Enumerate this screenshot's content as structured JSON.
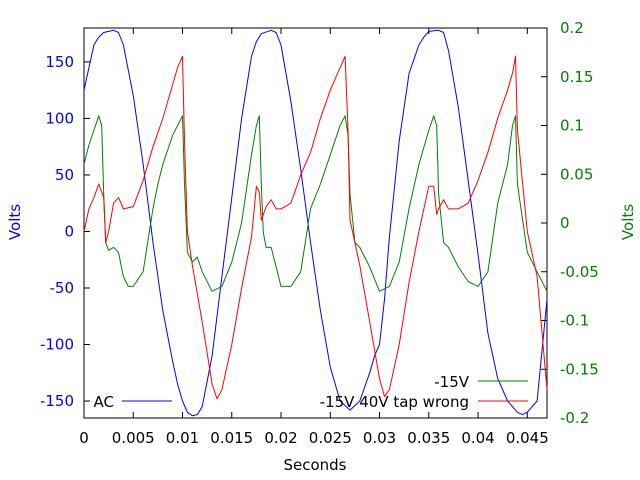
{
  "chart_data": {
    "type": "line",
    "title": "",
    "xlabel": "Seconds",
    "ylabel_left": "Volts",
    "ylabel_right": "Volts",
    "xlim": [
      0,
      0.047
    ],
    "ylim_left": [
      -165,
      180
    ],
    "ylim_right": [
      -0.2,
      0.2
    ],
    "x_ticks": [
      "0",
      "0.005",
      "0.01",
      "0.015",
      "0.02",
      "0.025",
      "0.03",
      "0.035",
      "0.04",
      "0.045"
    ],
    "y_left_ticks": [
      "150",
      "100",
      "50",
      "0",
      "-50",
      "-100",
      "-150"
    ],
    "y_right_ticks": [
      "0.2",
      "0.15",
      "0.1",
      "0.05",
      "0",
      "-0.05",
      "-0.1",
      "-0.15",
      "-0.2"
    ],
    "grid": false,
    "legend_placement": "bottom",
    "colors": {
      "left_axis": "#0000ff",
      "right_axis": "#008000"
    },
    "series": [
      {
        "name": "AC",
        "axis": "left",
        "color": "#0000ff",
        "x": [
          0,
          0.001,
          0.0015,
          0.002,
          0.003,
          0.0035,
          0.004,
          0.005,
          0.006,
          0.007,
          0.008,
          0.009,
          0.0095,
          0.01,
          0.0105,
          0.011,
          0.0115,
          0.012,
          0.013,
          0.014,
          0.015,
          0.016,
          0.017,
          0.0175,
          0.018,
          0.019,
          0.0195,
          0.02,
          0.021,
          0.022,
          0.023,
          0.024,
          0.025,
          0.026,
          0.027,
          0.028,
          0.029,
          0.0295,
          0.03,
          0.0305,
          0.031,
          0.032,
          0.033,
          0.034,
          0.0345,
          0.035,
          0.036,
          0.0365,
          0.037,
          0.038,
          0.039,
          0.04,
          0.041,
          0.042,
          0.043,
          0.044,
          0.0445,
          0.045,
          0.046,
          0.047
        ],
        "values": [
          125,
          165,
          172,
          176,
          178,
          176,
          165,
          120,
          60,
          -10,
          -70,
          -115,
          -135,
          -150,
          -160,
          -163,
          -162,
          -155,
          -110,
          -40,
          30,
          100,
          155,
          168,
          175,
          178,
          176,
          165,
          115,
          55,
          -10,
          -70,
          -120,
          -150,
          -158,
          -150,
          -125,
          -110,
          -100,
          -60,
          -5,
          80,
          140,
          165,
          172,
          177,
          178,
          176,
          160,
          110,
          45,
          -20,
          -90,
          -130,
          -150,
          -160,
          -162,
          -160,
          -150,
          -60
        ]
      },
      {
        "name": "-15V",
        "axis": "right",
        "color": "#008000",
        "x": [
          0,
          0.0005,
          0.001,
          0.0015,
          0.0018,
          0.002,
          0.0022,
          0.0025,
          0.003,
          0.0035,
          0.004,
          0.0045,
          0.005,
          0.006,
          0.007,
          0.0075,
          0.008,
          0.009,
          0.0095,
          0.01,
          0.0102,
          0.0105,
          0.011,
          0.0115,
          0.012,
          0.013,
          0.014,
          0.015,
          0.016,
          0.017,
          0.0175,
          0.0178,
          0.018,
          0.0182,
          0.0185,
          0.019,
          0.0195,
          0.02,
          0.021,
          0.022,
          0.023,
          0.024,
          0.025,
          0.026,
          0.0265,
          0.0268,
          0.027,
          0.0275,
          0.028,
          0.029,
          0.03,
          0.031,
          0.032,
          0.033,
          0.034,
          0.035,
          0.0355,
          0.0358,
          0.036,
          0.0365,
          0.037,
          0.038,
          0.039,
          0.04,
          0.041,
          0.042,
          0.043,
          0.0435,
          0.0438,
          0.044,
          0.045,
          0.046,
          0.047
        ],
        "values": [
          0.06,
          0.08,
          0.095,
          0.11,
          0.1,
          0.03,
          -0.02,
          -0.028,
          -0.025,
          -0.03,
          -0.055,
          -0.065,
          -0.065,
          -0.05,
          0.015,
          0.04,
          0.06,
          0.09,
          0.1,
          0.11,
          0.04,
          -0.03,
          -0.04,
          -0.035,
          -0.05,
          -0.07,
          -0.065,
          -0.04,
          0,
          0.07,
          0.1,
          0.11,
          0.04,
          -0.01,
          -0.025,
          -0.025,
          -0.045,
          -0.065,
          -0.065,
          -0.05,
          0.015,
          0.04,
          0.07,
          0.1,
          0.11,
          0.09,
          0.03,
          -0.02,
          -0.025,
          -0.045,
          -0.07,
          -0.065,
          -0.04,
          0.015,
          0.06,
          0.095,
          0.11,
          0.1,
          0.03,
          -0.02,
          -0.025,
          -0.045,
          -0.06,
          -0.065,
          -0.05,
          0.02,
          0.06,
          0.1,
          0.11,
          0.04,
          -0.03,
          -0.05,
          -0.07
        ]
      },
      {
        "name": "-15V 40V tap wrong",
        "axis": "left",
        "color": "#ff0000",
        "x": [
          0,
          0.0005,
          0.001,
          0.0015,
          0.002,
          0.0022,
          0.0025,
          0.003,
          0.0035,
          0.004,
          0.005,
          0.006,
          0.007,
          0.008,
          0.009,
          0.0095,
          0.01,
          0.0102,
          0.0105,
          0.011,
          0.012,
          0.013,
          0.0135,
          0.014,
          0.015,
          0.016,
          0.017,
          0.0175,
          0.0178,
          0.018,
          0.0185,
          0.019,
          0.0195,
          0.02,
          0.021,
          0.022,
          0.023,
          0.024,
          0.025,
          0.026,
          0.0265,
          0.0268,
          0.027,
          0.028,
          0.029,
          0.03,
          0.0305,
          0.031,
          0.032,
          0.033,
          0.034,
          0.035,
          0.0355,
          0.0358,
          0.036,
          0.0365,
          0.037,
          0.038,
          0.039,
          0.04,
          0.041,
          0.042,
          0.043,
          0.0435,
          0.0438,
          0.044,
          0.045,
          0.046,
          0.047
        ],
        "values": [
          0,
          20,
          30,
          42,
          30,
          -10,
          0,
          25,
          30,
          20,
          22,
          45,
          75,
          100,
          130,
          145,
          155,
          80,
          0,
          -30,
          -80,
          -135,
          -148,
          -140,
          -100,
          -50,
          -5,
          40,
          35,
          10,
          22,
          28,
          20,
          20,
          25,
          50,
          70,
          100,
          125,
          145,
          155,
          90,
          10,
          -30,
          -80,
          -130,
          -146,
          -140,
          -100,
          -45,
          0,
          40,
          40,
          15,
          20,
          28,
          20,
          20,
          25,
          45,
          70,
          100,
          125,
          140,
          155,
          90,
          0,
          -40,
          -140
        ]
      }
    ]
  }
}
